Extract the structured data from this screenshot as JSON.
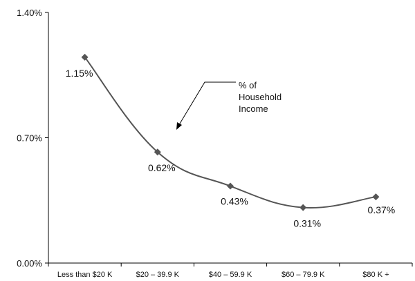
{
  "chart_data": {
    "type": "line",
    "title": "",
    "xlabel": "",
    "ylabel": "",
    "categories": [
      "Less than $20 K",
      "$20 – 39.9 K",
      "$40 – 59.9 K",
      "$60 – 79.9 K",
      "$80 K +"
    ],
    "series": [
      {
        "values": [
          1.15,
          0.62,
          0.43,
          0.31,
          0.37
        ]
      }
    ],
    "data_labels": [
      "1.15%",
      "0.62%",
      "0.43%",
      "0.31%",
      "0.37%"
    ],
    "ylim": [
      0,
      1.4
    ],
    "y_ticks": [
      0,
      0.7,
      1.4
    ],
    "y_tick_labels": [
      "0.00%",
      "0.70%",
      "1.40%"
    ],
    "grid": false,
    "line_color": "#555555",
    "marker_color": "#555555",
    "annotation": {
      "lines": [
        "% of",
        "Household",
        "Income"
      ]
    }
  }
}
